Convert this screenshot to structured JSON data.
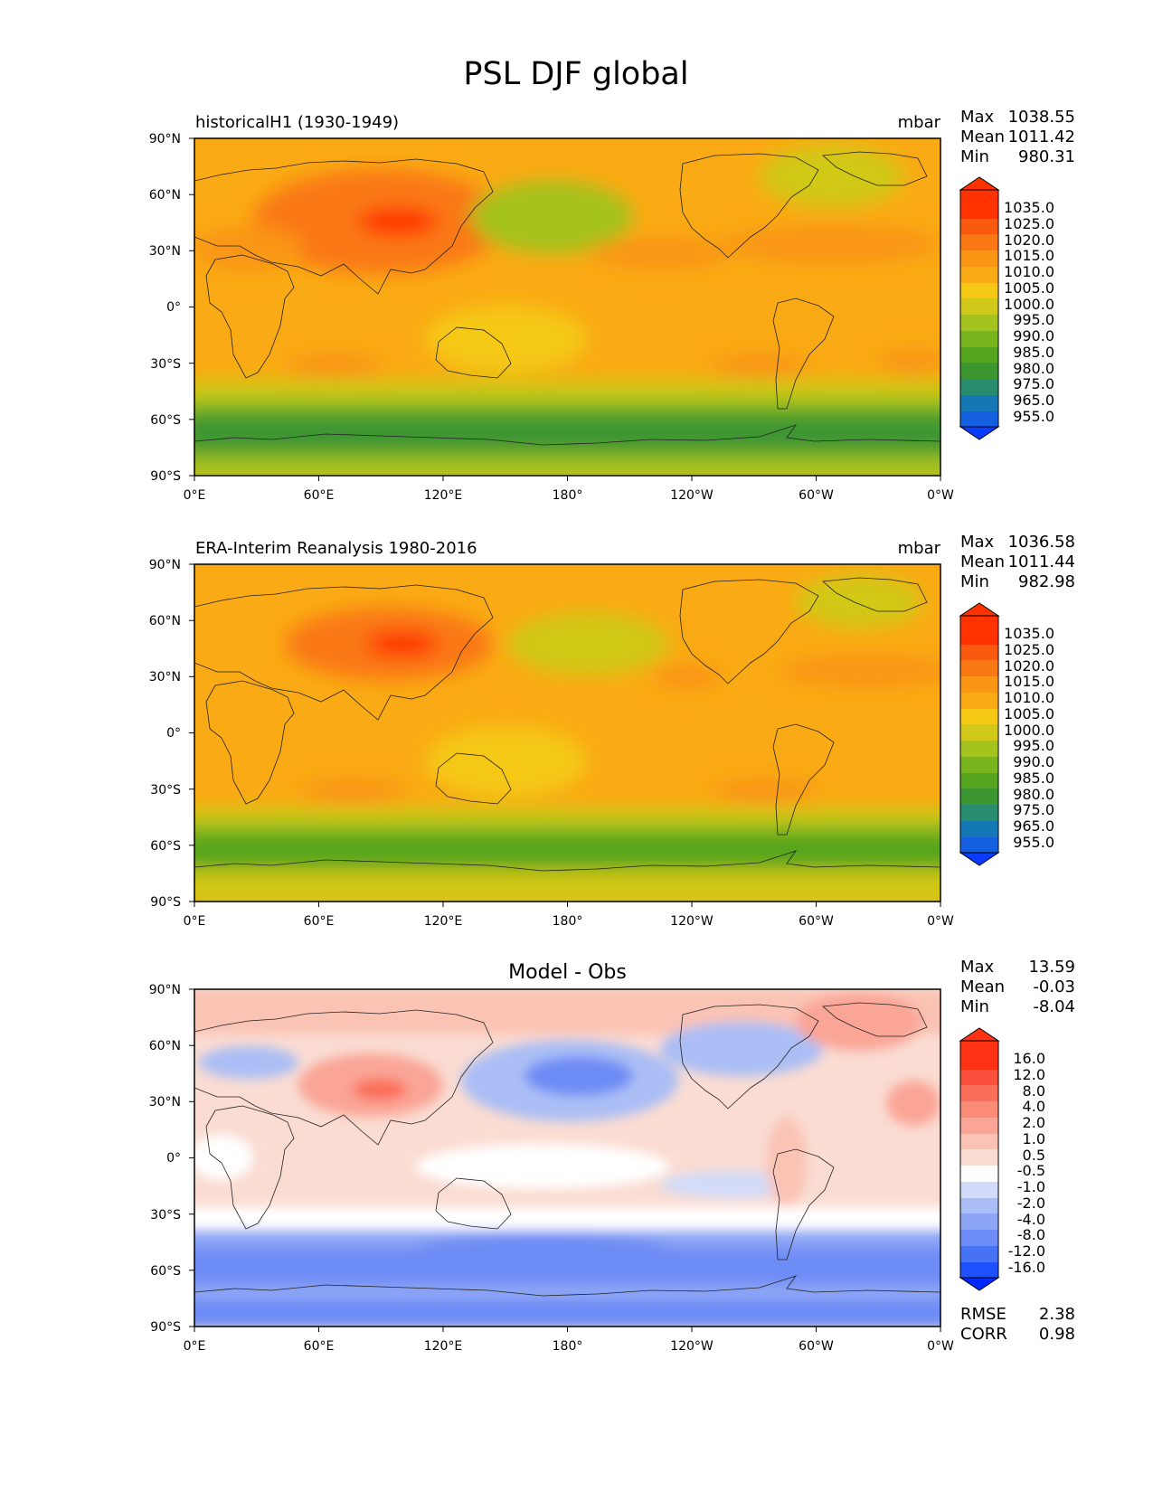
{
  "chart_data": {
    "type": "heatmap",
    "title": "PSL DJF global",
    "x_ticks": [
      "0°E",
      "60°E",
      "120°E",
      "180°",
      "120°W",
      "60°W",
      "0°W"
    ],
    "y_ticks": [
      "90°N",
      "60°N",
      "30°N",
      "0°",
      "30°S",
      "60°S",
      "90°S"
    ],
    "xlim": [
      0,
      360
    ],
    "ylim": [
      -90,
      90
    ],
    "panels": [
      {
        "id": "test",
        "left_title": "historicalH1 (1930-1949)",
        "right_title": "mbar",
        "center_title": "",
        "stats": [
          {
            "label": "Max",
            "value": "1038.55"
          },
          {
            "label": "Mean",
            "value": "1011.42"
          },
          {
            "label": "Min",
            "value": "980.31"
          }
        ],
        "colorbar": {
          "levels": [
            "955.0",
            "965.0",
            "975.0",
            "980.0",
            "985.0",
            "990.0",
            "995.0",
            "1000.0",
            "1005.0",
            "1010.0",
            "1015.0",
            "1020.0",
            "1025.0",
            "1035.0"
          ],
          "colors": [
            "#0a3cff",
            "#1460e0",
            "#1478b4",
            "#288c6e",
            "#3c9632",
            "#55a51e",
            "#78b41e",
            "#a5c31e",
            "#d2c819",
            "#f5c814",
            "#faaa14",
            "#fa9614",
            "#fa7814",
            "#fa5a0f",
            "#ff3200"
          ]
        },
        "extra_stats": []
      },
      {
        "id": "reference",
        "left_title": "ERA-Interim Reanalysis 1980-2016",
        "right_title": "mbar",
        "center_title": "",
        "stats": [
          {
            "label": "Max",
            "value": "1036.58"
          },
          {
            "label": "Mean",
            "value": "1011.44"
          },
          {
            "label": "Min",
            "value": "982.98"
          }
        ],
        "colorbar": {
          "levels": [
            "955.0",
            "965.0",
            "975.0",
            "980.0",
            "985.0",
            "990.0",
            "995.0",
            "1000.0",
            "1005.0",
            "1010.0",
            "1015.0",
            "1020.0",
            "1025.0",
            "1035.0"
          ],
          "colors": [
            "#0a3cff",
            "#1460e0",
            "#1478b4",
            "#288c6e",
            "#3c9632",
            "#55a51e",
            "#78b41e",
            "#a5c31e",
            "#d2c819",
            "#f5c814",
            "#faaa14",
            "#fa9614",
            "#fa7814",
            "#fa5a0f",
            "#ff3200"
          ]
        },
        "extra_stats": []
      },
      {
        "id": "diff",
        "left_title": "",
        "right_title": "",
        "center_title": "Model - Obs",
        "stats": [
          {
            "label": "Max",
            "value": "13.59"
          },
          {
            "label": "Mean",
            "value": "-0.03"
          },
          {
            "label": "Min",
            "value": "-8.04"
          }
        ],
        "colorbar": {
          "levels": [
            "-16.0",
            "-12.0",
            "-8.0",
            "-4.0",
            "-2.0",
            "-1.0",
            "-0.5",
            "0.5",
            "1.0",
            "2.0",
            "4.0",
            "8.0",
            "12.0",
            "16.0"
          ],
          "colors": [
            "#0028ff",
            "#1e50ff",
            "#4673f5",
            "#6e8cf5",
            "#8ca5f5",
            "#aabef5",
            "#d2dcfa",
            "#ffffff",
            "#fadcd2",
            "#fac3b4",
            "#faa596",
            "#fa8c78",
            "#fa6e5a",
            "#fa503c",
            "#ff3214"
          ]
        },
        "extra_stats": [
          {
            "label": "RMSE",
            "value": "2.38"
          },
          {
            "label": "CORR",
            "value": "0.98"
          }
        ]
      }
    ]
  }
}
